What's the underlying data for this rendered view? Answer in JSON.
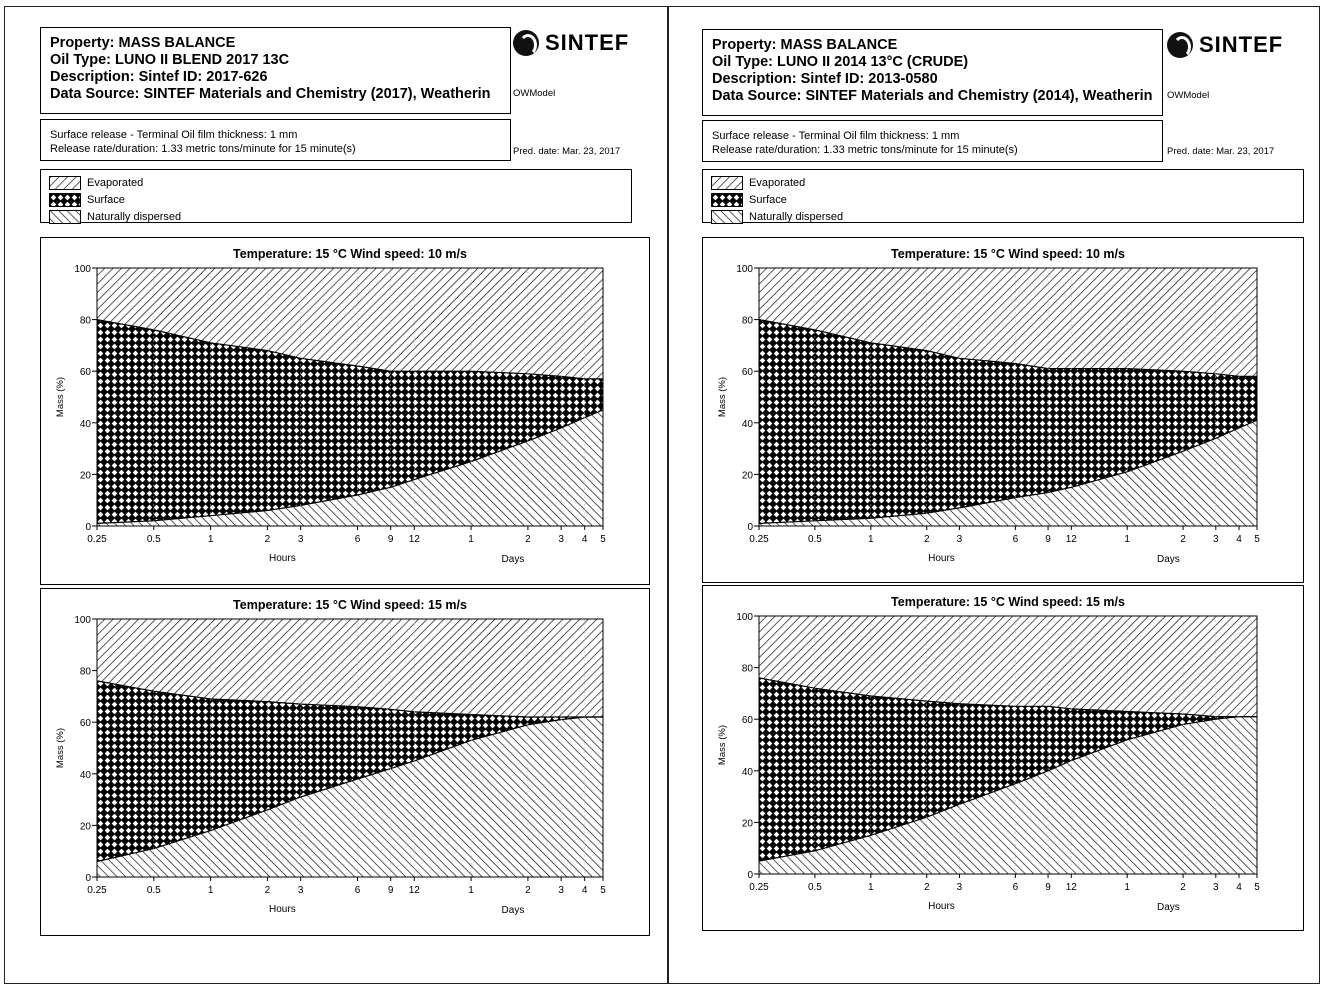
{
  "pages": [
    {
      "header": {
        "property": "Property: MASS BALANCE",
        "oil_type": "Oil Type: LUNO II BLEND 2017 13C",
        "description": "Description: Sintef ID: 2017-626",
        "data_source": "Data Source: SINTEF Materials and Chemistry (2017), Weatherin"
      },
      "logo_text": "SINTEF",
      "model": "OWModel",
      "release": {
        "line1": "Surface release - Terminal Oil film thickness: 1 mm",
        "line2": "Release rate/duration: 1.33 metric tons/minute for 15 minute(s)"
      },
      "pred_date": "Pred. date: Mar. 23, 2017",
      "legend": [
        "Evaporated",
        "Surface",
        "Naturally dispersed"
      ]
    },
    {
      "header": {
        "property": "Property: MASS BALANCE",
        "oil_type": "Oil Type: LUNO II 2014 13°C (CRUDE)",
        "description": "Description: Sintef ID: 2013-0580",
        "data_source": "Data Source: SINTEF Materials and Chemistry (2014), Weatherin"
      },
      "logo_text": "SINTEF",
      "model": "OWModel",
      "release": {
        "line1": "Surface release - Terminal Oil film thickness: 1 mm",
        "line2": "Release rate/duration: 1.33 metric tons/minute for 15 minute(s)"
      },
      "pred_date": "Pred. date: Mar. 23, 2017",
      "legend": [
        "Evaporated",
        "Surface",
        "Naturally dispersed"
      ]
    }
  ],
  "chart_data": [
    {
      "type": "area",
      "title": "Temperature: 15 °C    Wind speed: 10 m/s",
      "ylabel": "Mass (%)",
      "xlabel_hours": "Hours",
      "xlabel_days": "Days",
      "ylim": [
        0,
        100
      ],
      "x_hours": [
        0.25,
        0.5,
        1,
        2,
        3,
        6,
        9,
        12,
        24,
        48,
        72,
        96,
        120
      ],
      "x_tick_labels": [
        "0.25",
        "0.5",
        "1",
        "2",
        "3",
        "6",
        "9",
        "12",
        "1",
        "2",
        "3",
        "4",
        "5"
      ],
      "y_ticks": [
        0,
        20,
        40,
        60,
        80,
        100
      ],
      "series": [
        {
          "name": "Naturally dispersed",
          "values": [
            1,
            2,
            4,
            6,
            8,
            12,
            15,
            18,
            25,
            33,
            38,
            42,
            45
          ]
        },
        {
          "name": "Surface",
          "values": [
            79,
            74,
            67,
            62,
            57,
            50,
            45,
            42,
            35,
            26,
            20,
            15,
            12
          ]
        },
        {
          "name": "Evaporated",
          "values": [
            20,
            24,
            29,
            32,
            35,
            38,
            40,
            40,
            40,
            41,
            42,
            43,
            43
          ]
        }
      ]
    },
    {
      "type": "area",
      "title": "Temperature: 15 °C    Wind speed: 15 m/s",
      "ylabel": "Mass (%)",
      "xlabel_hours": "Hours",
      "xlabel_days": "Days",
      "ylim": [
        0,
        100
      ],
      "x_hours": [
        0.25,
        0.5,
        1,
        2,
        3,
        6,
        9,
        12,
        24,
        48,
        72,
        96,
        120
      ],
      "x_tick_labels": [
        "0.25",
        "0.5",
        "1",
        "2",
        "3",
        "6",
        "9",
        "12",
        "1",
        "2",
        "3",
        "4",
        "5"
      ],
      "y_ticks": [
        0,
        20,
        40,
        60,
        80,
        100
      ],
      "series": [
        {
          "name": "Naturally dispersed",
          "values": [
            6,
            11,
            18,
            26,
            31,
            38,
            42,
            45,
            53,
            59,
            61,
            62,
            62
          ]
        },
        {
          "name": "Surface",
          "values": [
            70,
            61,
            51,
            42,
            36,
            28,
            23,
            19,
            10,
            3,
            1,
            0,
            0
          ]
        },
        {
          "name": "Evaporated",
          "values": [
            24,
            28,
            31,
            32,
            33,
            34,
            35,
            36,
            37,
            38,
            38,
            38,
            38
          ]
        }
      ]
    },
    {
      "type": "area",
      "title": "Temperature: 15 °C    Wind speed: 10 m/s",
      "ylabel": "Mass (%)",
      "xlabel_hours": "Hours",
      "xlabel_days": "Days",
      "ylim": [
        0,
        100
      ],
      "x_hours": [
        0.25,
        0.5,
        1,
        2,
        3,
        6,
        9,
        12,
        24,
        48,
        72,
        96,
        120
      ],
      "x_tick_labels": [
        "0.25",
        "0.5",
        "1",
        "2",
        "3",
        "6",
        "9",
        "12",
        "1",
        "2",
        "3",
        "4",
        "5"
      ],
      "y_ticks": [
        0,
        20,
        40,
        60,
        80,
        100
      ],
      "series": [
        {
          "name": "Naturally dispersed",
          "values": [
            1,
            2,
            3,
            5,
            7,
            11,
            13,
            15,
            21,
            29,
            34,
            38,
            41
          ]
        },
        {
          "name": "Surface",
          "values": [
            79,
            74,
            68,
            63,
            58,
            52,
            48,
            46,
            40,
            31,
            25,
            20,
            17
          ]
        },
        {
          "name": "Evaporated",
          "values": [
            20,
            24,
            29,
            32,
            35,
            37,
            39,
            39,
            39,
            40,
            41,
            42,
            42
          ]
        }
      ]
    },
    {
      "type": "area",
      "title": "Temperature: 15 °C    Wind speed: 15 m/s",
      "ylabel": "Mass (%)",
      "xlabel_hours": "Hours",
      "xlabel_days": "Days",
      "ylim": [
        0,
        100
      ],
      "x_hours": [
        0.25,
        0.5,
        1,
        2,
        3,
        6,
        9,
        12,
        24,
        48,
        72,
        96,
        120
      ],
      "x_tick_labels": [
        "0.25",
        "0.5",
        "1",
        "2",
        "3",
        "6",
        "9",
        "12",
        "1",
        "2",
        "3",
        "4",
        "5"
      ],
      "y_ticks": [
        0,
        20,
        40,
        60,
        80,
        100
      ],
      "series": [
        {
          "name": "Naturally dispersed",
          "values": [
            5,
            9,
            15,
            22,
            27,
            35,
            40,
            44,
            52,
            58,
            60,
            61,
            61
          ]
        },
        {
          "name": "Surface",
          "values": [
            71,
            63,
            54,
            45,
            39,
            30,
            25,
            20,
            11,
            4,
            1,
            0,
            0
          ]
        },
        {
          "name": "Evaporated",
          "values": [
            24,
            28,
            31,
            33,
            34,
            35,
            35,
            36,
            37,
            38,
            39,
            39,
            39
          ]
        }
      ]
    }
  ]
}
